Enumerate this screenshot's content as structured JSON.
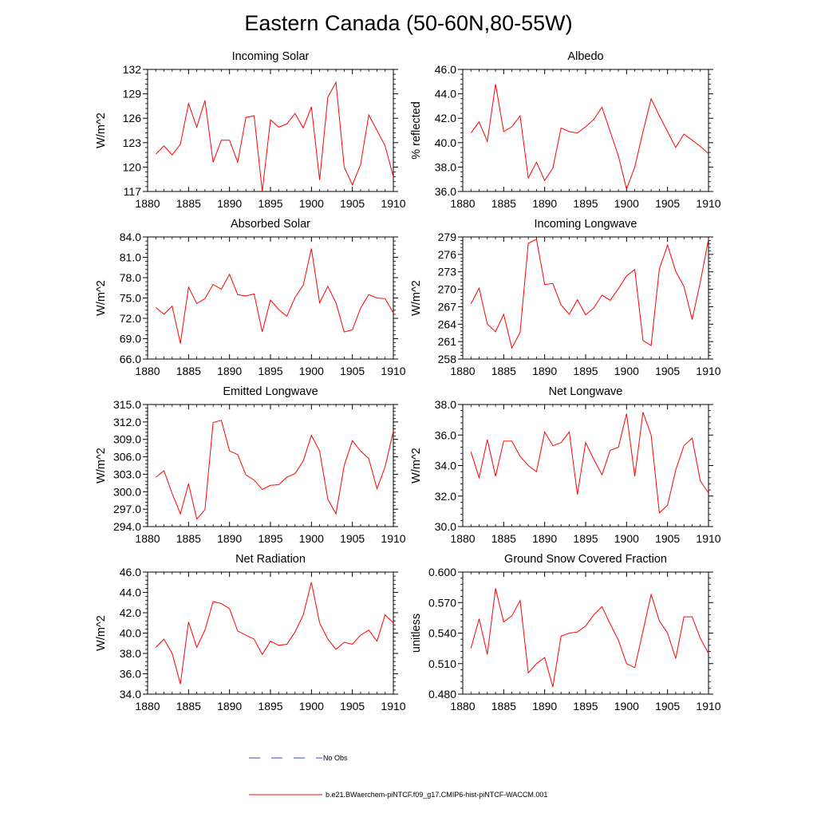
{
  "title": "Eastern Canada (50-60N,80-55W)",
  "legend": [
    {
      "label": "No Obs",
      "color": "#3344cc",
      "dash": true
    },
    {
      "label": "b.e21.BWaerchem-piNTCF.f09_g17.CMIP6-hist-piNTCF-WACCM.001",
      "color": "#ff0000",
      "dash": false
    }
  ],
  "chart_data": [
    {
      "type": "line",
      "title": "Incoming Solar",
      "ylabel": "W/m^2",
      "xlim": [
        1880,
        1910
      ],
      "ylim": [
        117,
        132
      ],
      "xticks": [
        1880,
        1885,
        1890,
        1895,
        1900,
        1905,
        1910
      ],
      "yticks": [
        117,
        120,
        123,
        126,
        129,
        132
      ],
      "ytick_labels": [
        "117",
        "120",
        "123",
        "126",
        "129",
        "132"
      ],
      "x": [
        1881,
        1882,
        1883,
        1884,
        1885,
        1886,
        1887,
        1888,
        1889,
        1890,
        1891,
        1892,
        1893,
        1894,
        1895,
        1896,
        1897,
        1898,
        1899,
        1900,
        1901,
        1902,
        1903,
        1904,
        1905,
        1906,
        1907,
        1908,
        1909,
        1910
      ],
      "series": [
        {
          "color": "#ff0000",
          "values": [
            121.6,
            122.6,
            121.5,
            122.8,
            127.8,
            124.9,
            128.2,
            120.6,
            123.3,
            123.3,
            120.6,
            126.1,
            126.3,
            117.0,
            125.8,
            124.9,
            125.3,
            126.6,
            124.8,
            127.4,
            118.4,
            128.6,
            130.4,
            120.0,
            117.8,
            120.3,
            126.4,
            124.5,
            122.6,
            118.8
          ]
        }
      ]
    },
    {
      "type": "line",
      "title": "Albedo",
      "ylabel": "% reflected",
      "xlim": [
        1880,
        1910
      ],
      "ylim": [
        36.0,
        46.0
      ],
      "xticks": [
        1880,
        1885,
        1890,
        1895,
        1900,
        1905,
        1910
      ],
      "yticks": [
        36,
        38,
        40,
        42,
        44,
        46
      ],
      "ytick_labels": [
        "36.0",
        "38.0",
        "40.0",
        "42.0",
        "44.0",
        "46.0"
      ],
      "x": [
        1881,
        1882,
        1883,
        1884,
        1885,
        1886,
        1887,
        1888,
        1889,
        1890,
        1891,
        1892,
        1893,
        1894,
        1895,
        1896,
        1897,
        1898,
        1899,
        1900,
        1901,
        1902,
        1903,
        1904,
        1905,
        1906,
        1907,
        1908,
        1909,
        1910
      ],
      "series": [
        {
          "color": "#ff0000",
          "values": [
            40.8,
            41.7,
            40.1,
            44.8,
            40.9,
            41.3,
            42.2,
            37.1,
            38.4,
            36.9,
            37.9,
            41.2,
            40.9,
            40.8,
            41.3,
            41.9,
            42.9,
            40.9,
            38.9,
            36.2,
            38.0,
            40.9,
            43.6,
            42.2,
            40.9,
            39.6,
            40.7,
            40.2,
            39.7,
            39.1
          ]
        }
      ]
    },
    {
      "type": "line",
      "title": "Absorbed Solar",
      "ylabel": "W/m^2",
      "xlim": [
        1880,
        1910
      ],
      "ylim": [
        66.0,
        84.0
      ],
      "xticks": [
        1880,
        1885,
        1890,
        1895,
        1900,
        1905,
        1910
      ],
      "yticks": [
        66,
        69,
        72,
        75,
        78,
        81,
        84
      ],
      "ytick_labels": [
        "66.0",
        "69.0",
        "72.0",
        "75.0",
        "78.0",
        "81.0",
        "84.0"
      ],
      "x": [
        1881,
        1882,
        1883,
        1884,
        1885,
        1886,
        1887,
        1888,
        1889,
        1890,
        1891,
        1892,
        1893,
        1894,
        1895,
        1896,
        1897,
        1898,
        1899,
        1900,
        1901,
        1902,
        1903,
        1904,
        1905,
        1906,
        1907,
        1908,
        1909,
        1910
      ],
      "series": [
        {
          "color": "#ff0000",
          "values": [
            73.6,
            72.6,
            73.8,
            68.3,
            76.6,
            74.2,
            74.9,
            77.0,
            76.3,
            78.5,
            75.5,
            75.3,
            75.6,
            70.0,
            74.7,
            73.3,
            72.3,
            75.1,
            76.9,
            82.3,
            74.3,
            76.7,
            74.3,
            70.0,
            70.3,
            73.5,
            75.5,
            75.0,
            74.9,
            72.8
          ]
        }
      ]
    },
    {
      "type": "line",
      "title": "Incoming Longwave",
      "ylabel": "W/m^2",
      "xlim": [
        1880,
        1910
      ],
      "ylim": [
        258,
        279
      ],
      "xticks": [
        1880,
        1885,
        1890,
        1895,
        1900,
        1905,
        1910
      ],
      "yticks": [
        258,
        261,
        264,
        267,
        270,
        273,
        276,
        279
      ],
      "ytick_labels": [
        "258",
        "261",
        "264",
        "267",
        "270",
        "273",
        "276",
        "279"
      ],
      "x": [
        1881,
        1882,
        1883,
        1884,
        1885,
        1886,
        1887,
        1888,
        1889,
        1890,
        1891,
        1892,
        1893,
        1894,
        1895,
        1896,
        1897,
        1898,
        1899,
        1900,
        1901,
        1902,
        1903,
        1904,
        1905,
        1906,
        1907,
        1908,
        1909,
        1910
      ],
      "series": [
        {
          "color": "#ff0000",
          "values": [
            267.5,
            270.2,
            264.0,
            262.7,
            265.7,
            259.9,
            262.6,
            277.9,
            278.6,
            270.8,
            271.0,
            267.3,
            265.7,
            268.2,
            265.6,
            266.8,
            269.0,
            268.1,
            270.1,
            272.3,
            273.4,
            261.2,
            260.3,
            273.5,
            277.6,
            273.1,
            270.5,
            264.8,
            271.2,
            278.6
          ]
        }
      ]
    },
    {
      "type": "line",
      "title": "Emitted Longwave",
      "ylabel": "W/m^2",
      "xlim": [
        1880,
        1910
      ],
      "ylim": [
        294.0,
        315.0
      ],
      "xticks": [
        1880,
        1885,
        1890,
        1895,
        1900,
        1905,
        1910
      ],
      "yticks": [
        294,
        297,
        300,
        303,
        306,
        309,
        312,
        315
      ],
      "ytick_labels": [
        "294.0",
        "297.0",
        "300.0",
        "303.0",
        "306.0",
        "309.0",
        "312.0",
        "315.0"
      ],
      "x": [
        1881,
        1882,
        1883,
        1884,
        1885,
        1886,
        1887,
        1888,
        1889,
        1890,
        1891,
        1892,
        1893,
        1894,
        1895,
        1896,
        1897,
        1898,
        1899,
        1900,
        1901,
        1902,
        1903,
        1904,
        1905,
        1906,
        1907,
        1908,
        1909,
        1910
      ],
      "series": [
        {
          "color": "#ff0000",
          "values": [
            302.5,
            303.6,
            299.7,
            296.2,
            301.4,
            295.3,
            296.9,
            311.9,
            312.3,
            307.0,
            306.4,
            302.9,
            302.0,
            300.4,
            301.1,
            301.2,
            302.5,
            303.1,
            305.3,
            309.7,
            307.0,
            298.7,
            296.2,
            304.5,
            308.8,
            307.0,
            305.7,
            300.5,
            304.3,
            310.4
          ]
        }
      ]
    },
    {
      "type": "line",
      "title": "Net Longwave",
      "ylabel": "W/m^2",
      "xlim": [
        1880,
        1910
      ],
      "ylim": [
        30.0,
        38.0
      ],
      "xticks": [
        1880,
        1885,
        1890,
        1895,
        1900,
        1905,
        1910
      ],
      "yticks": [
        30,
        32,
        34,
        36,
        38
      ],
      "ytick_labels": [
        "30.0",
        "32.0",
        "34.0",
        "36.0",
        "38.0"
      ],
      "x": [
        1881,
        1882,
        1883,
        1884,
        1885,
        1886,
        1887,
        1888,
        1889,
        1890,
        1891,
        1892,
        1893,
        1894,
        1895,
        1896,
        1897,
        1898,
        1899,
        1900,
        1901,
        1902,
        1903,
        1904,
        1905,
        1906,
        1907,
        1908,
        1909,
        1910
      ],
      "series": [
        {
          "color": "#ff0000",
          "values": [
            34.9,
            33.2,
            35.7,
            33.3,
            35.6,
            35.6,
            34.6,
            34.0,
            33.6,
            36.2,
            35.3,
            35.5,
            36.2,
            32.1,
            35.5,
            34.4,
            33.4,
            35.0,
            35.2,
            37.4,
            33.3,
            37.5,
            36.0,
            30.9,
            31.4,
            33.7,
            35.3,
            35.8,
            33.0,
            32.2
          ]
        }
      ]
    },
    {
      "type": "line",
      "title": "Net Radiation",
      "ylabel": "W/m^2",
      "xlim": [
        1880,
        1910
      ],
      "ylim": [
        34.0,
        46.0
      ],
      "xticks": [
        1880,
        1885,
        1890,
        1895,
        1900,
        1905,
        1910
      ],
      "yticks": [
        34,
        36,
        38,
        40,
        42,
        44,
        46
      ],
      "ytick_labels": [
        "34.0",
        "36.0",
        "38.0",
        "40.0",
        "42.0",
        "44.0",
        "46.0"
      ],
      "x": [
        1881,
        1882,
        1883,
        1884,
        1885,
        1886,
        1887,
        1888,
        1889,
        1890,
        1891,
        1892,
        1893,
        1894,
        1895,
        1896,
        1897,
        1898,
        1899,
        1900,
        1901,
        1902,
        1903,
        1904,
        1905,
        1906,
        1907,
        1908,
        1909,
        1910
      ],
      "series": [
        {
          "color": "#ff0000",
          "values": [
            38.6,
            39.4,
            38.0,
            35.0,
            41.1,
            38.6,
            40.3,
            43.1,
            42.9,
            42.4,
            40.2,
            39.8,
            39.4,
            37.9,
            39.2,
            38.8,
            38.9,
            40.1,
            41.8,
            45.0,
            41.0,
            39.4,
            38.4,
            39.1,
            38.9,
            39.8,
            40.3,
            39.2,
            41.8,
            41.0
          ]
        }
      ]
    },
    {
      "type": "line",
      "title": "Ground Snow Covered Fraction",
      "ylabel": "unitless",
      "xlim": [
        1880,
        1910
      ],
      "ylim": [
        0.48,
        0.6
      ],
      "xticks": [
        1880,
        1885,
        1890,
        1895,
        1900,
        1905,
        1910
      ],
      "yticks": [
        0.48,
        0.51,
        0.54,
        0.57,
        0.6
      ],
      "ytick_labels": [
        "0.480",
        "0.510",
        "0.540",
        "0.570",
        "0.600"
      ],
      "x": [
        1881,
        1882,
        1883,
        1884,
        1885,
        1886,
        1887,
        1888,
        1889,
        1890,
        1891,
        1892,
        1893,
        1894,
        1895,
        1896,
        1897,
        1898,
        1899,
        1900,
        1901,
        1902,
        1903,
        1904,
        1905,
        1906,
        1907,
        1908,
        1909,
        1910
      ],
      "series": [
        {
          "color": "#ff0000",
          "values": [
            0.525,
            0.554,
            0.519,
            0.584,
            0.551,
            0.557,
            0.572,
            0.501,
            0.51,
            0.516,
            0.487,
            0.537,
            0.54,
            0.541,
            0.547,
            0.558,
            0.566,
            0.549,
            0.533,
            0.51,
            0.506,
            0.542,
            0.578,
            0.552,
            0.54,
            0.515,
            0.556,
            0.556,
            0.535,
            0.52
          ]
        }
      ]
    }
  ]
}
